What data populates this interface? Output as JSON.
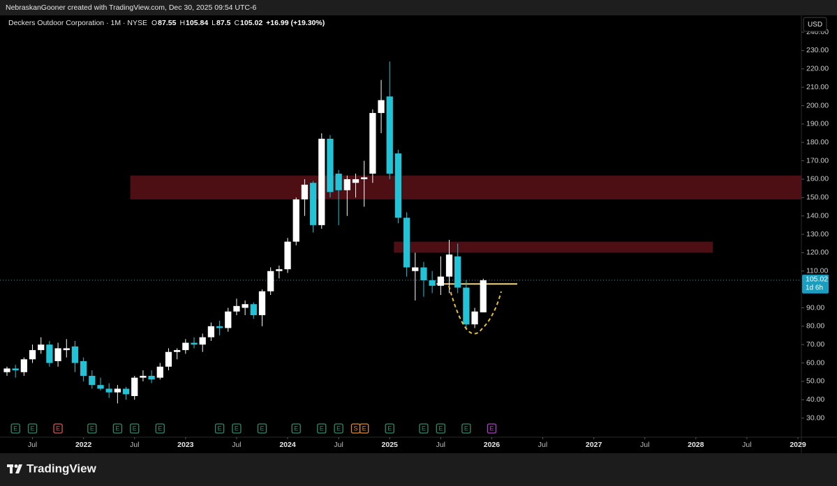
{
  "header": {
    "credit": "NebraskanGooner created with TradingView.com, Dec 30, 2025 09:54 UTC-6",
    "brand": "TradingView",
    "currency": "USD"
  },
  "chart_data": {
    "type": "candlestick",
    "title": "Deckers Outdoor Corporation · 1M · NYSE",
    "ohlc_prefixes": [
      "O",
      "H",
      "L",
      "C"
    ],
    "change_label": "+16.99 (+19.30%)",
    "countdown": "1d 6h",
    "up_color": "#ffffff",
    "down_color": "#22c3d6",
    "x": [
      "2021-04",
      "2021-05",
      "2021-06",
      "2021-07",
      "2021-08",
      "2021-09",
      "2021-10",
      "2021-11",
      "2021-12",
      "2022-01",
      "2022-02",
      "2022-03",
      "2022-04",
      "2022-05",
      "2022-06",
      "2022-07",
      "2022-08",
      "2022-09",
      "2022-10",
      "2022-11",
      "2022-12",
      "2023-01",
      "2023-02",
      "2023-03",
      "2023-04",
      "2023-05",
      "2023-06",
      "2023-07",
      "2023-08",
      "2023-09",
      "2023-10",
      "2023-11",
      "2023-12",
      "2024-01",
      "2024-02",
      "2024-03",
      "2024-04",
      "2024-05",
      "2024-06",
      "2024-07",
      "2024-08",
      "2024-09",
      "2024-10",
      "2024-11",
      "2024-12",
      "2025-01",
      "2025-02",
      "2025-03",
      "2025-04",
      "2025-05",
      "2025-06",
      "2025-07",
      "2025-08",
      "2025-09",
      "2025-10",
      "2025-11",
      "2025-12"
    ],
    "open": [
      55,
      57,
      55,
      62,
      67,
      70,
      61,
      67,
      69,
      61,
      53,
      48,
      46,
      44,
      46,
      42,
      52,
      53,
      52,
      58,
      66,
      67,
      71,
      70,
      74,
      80,
      79,
      88,
      90,
      92,
      86,
      99,
      110,
      111,
      126,
      149,
      158,
      135,
      182,
      163,
      154,
      158,
      160,
      163,
      196,
      205,
      174,
      139,
      110,
      112,
      105,
      102,
      107,
      118,
      101,
      81,
      87.55
    ],
    "high": [
      58,
      59,
      63,
      70,
      74,
      72,
      71,
      73,
      72,
      63,
      56,
      52,
      49,
      48,
      47,
      53,
      56,
      56,
      60,
      68,
      68,
      73,
      74,
      76,
      82,
      83,
      90,
      95,
      94,
      93,
      100,
      112,
      113,
      128,
      150,
      160,
      159,
      185,
      184,
      165,
      162,
      163,
      170,
      198,
      214,
      224,
      176,
      142,
      120,
      115,
      110,
      118,
      127,
      125,
      105,
      90,
      105.84
    ],
    "low": [
      53,
      52,
      53,
      60,
      65,
      58,
      58,
      63,
      55,
      50,
      46,
      45,
      41,
      38,
      40,
      40,
      50,
      49,
      51,
      56,
      62,
      65,
      68,
      66,
      72,
      75,
      77,
      86,
      86,
      84,
      80,
      97,
      106,
      109,
      124,
      140,
      131,
      133,
      150,
      135,
      140,
      150,
      145,
      158,
      185,
      160,
      136,
      107,
      94,
      96,
      98,
      97,
      98,
      98,
      78,
      79,
      87.5
    ],
    "close": [
      57,
      56,
      62,
      67,
      70,
      60,
      68,
      68,
      60,
      53,
      48,
      46,
      44,
      46,
      43,
      52,
      53,
      51,
      58,
      66,
      67,
      71,
      70,
      74,
      80,
      79,
      88,
      91,
      92,
      86,
      99,
      110,
      111,
      126,
      149,
      157,
      135,
      182,
      153,
      154,
      160,
      160,
      161,
      196,
      203,
      163,
      139,
      112,
      112,
      105,
      102,
      107,
      119,
      101,
      81,
      88,
      105.02
    ],
    "xlim": [
      "2021-04",
      "2029-01"
    ],
    "xticks": [
      {
        "value": "2021-07",
        "label": "Jul"
      },
      {
        "value": "2022-01",
        "label": "2022"
      },
      {
        "value": "2022-07",
        "label": "Jul"
      },
      {
        "value": "2023-01",
        "label": "2023"
      },
      {
        "value": "2023-07",
        "label": "Jul"
      },
      {
        "value": "2024-01",
        "label": "2024"
      },
      {
        "value": "2024-07",
        "label": "Jul"
      },
      {
        "value": "2025-01",
        "label": "2025"
      },
      {
        "value": "2025-07",
        "label": "Jul"
      },
      {
        "value": "2026-01",
        "label": "2026"
      },
      {
        "value": "2026-07",
        "label": "Jul"
      },
      {
        "value": "2027-01",
        "label": "2027"
      },
      {
        "value": "2027-07",
        "label": "Jul"
      },
      {
        "value": "2028-01",
        "label": "2028"
      },
      {
        "value": "2028-07",
        "label": "Jul"
      },
      {
        "value": "2029-01",
        "label": "2029"
      }
    ],
    "ylim": [
      20,
      248
    ],
    "yticks": [
      {
        "value": 30,
        "label": "30.00"
      },
      {
        "value": 40,
        "label": "40.00"
      },
      {
        "value": 50,
        "label": "50.00"
      },
      {
        "value": 60,
        "label": "60.00"
      },
      {
        "value": 70,
        "label": "70.00"
      },
      {
        "value": 80,
        "label": "80.00"
      },
      {
        "value": 90,
        "label": "90.00"
      },
      {
        "value": 110,
        "label": "110.00"
      },
      {
        "value": 120,
        "label": "120.00"
      },
      {
        "value": 130,
        "label": "130.00"
      },
      {
        "value": 140,
        "label": "140.00"
      },
      {
        "value": 150,
        "label": "150.00"
      },
      {
        "value": 160,
        "label": "160.00"
      },
      {
        "value": 170,
        "label": "170.00"
      },
      {
        "value": 180,
        "label": "180.00"
      },
      {
        "value": 190,
        "label": "190.00"
      },
      {
        "value": 200,
        "label": "200.00"
      },
      {
        "value": 210,
        "label": "210.00"
      },
      {
        "value": 220,
        "label": "220.00"
      },
      {
        "value": 230,
        "label": "230.00"
      },
      {
        "value": 240,
        "label": "240.00"
      }
    ],
    "zones": [
      {
        "low": 149,
        "high": 162,
        "from": "2022-07",
        "color": "#5a1218"
      },
      {
        "low": 120,
        "high": 126,
        "from": "2025-02",
        "to": "2028-03",
        "color": "#5a1218"
      }
    ],
    "level": {
      "value": 103,
      "from": "2025-07",
      "to": "2026-04",
      "color": "#f5d57a"
    },
    "markers": [
      {
        "x": "2021-05",
        "label": "E",
        "color": "#2e8b6e"
      },
      {
        "x": "2021-07",
        "label": "E",
        "color": "#2e8b6e"
      },
      {
        "x": "2021-10",
        "label": "E",
        "color": "#d9534f"
      },
      {
        "x": "2022-02",
        "label": "E",
        "color": "#2e8b6e"
      },
      {
        "x": "2022-05",
        "label": "E",
        "color": "#2e8b6e"
      },
      {
        "x": "2022-07",
        "label": "E",
        "color": "#2e8b6e"
      },
      {
        "x": "2022-10",
        "label": "E",
        "color": "#2e8b6e"
      },
      {
        "x": "2023-05",
        "label": "E",
        "color": "#2e8b6e"
      },
      {
        "x": "2023-07",
        "label": "E",
        "color": "#2e8b6e"
      },
      {
        "x": "2023-10",
        "label": "E",
        "color": "#2e8b6e"
      },
      {
        "x": "2024-02",
        "label": "E",
        "color": "#2e8b6e"
      },
      {
        "x": "2024-05",
        "label": "E",
        "color": "#2e8b6e"
      },
      {
        "x": "2024-07",
        "label": "E",
        "color": "#2e8b6e"
      },
      {
        "x": "2024-09",
        "label": "S",
        "color": "#e08a2c"
      },
      {
        "x": "2024-10",
        "label": "E",
        "color": "#e08a2c"
      },
      {
        "x": "2025-01",
        "label": "E",
        "color": "#2e8b6e"
      },
      {
        "x": "2025-05",
        "label": "E",
        "color": "#2e8b6e"
      },
      {
        "x": "2025-07",
        "label": "E",
        "color": "#2e8b6e"
      },
      {
        "x": "2025-10",
        "label": "E",
        "color": "#2e8b6e"
      },
      {
        "x": "2026-01",
        "label": "E",
        "color": "#b03cc8"
      }
    ]
  }
}
